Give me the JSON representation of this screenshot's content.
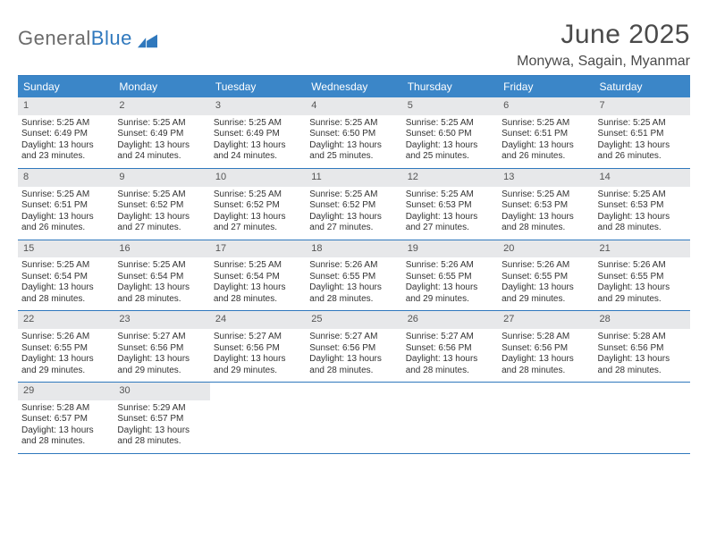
{
  "brand": {
    "name_part1": "General",
    "name_part2": "Blue"
  },
  "title": "June 2025",
  "location": "Monywa, Sagain, Myanmar",
  "colors": {
    "header_bg": "#3b86c8",
    "header_text": "#ffffff",
    "rule": "#2f78bd",
    "daynum_bg": "#e7e8ea",
    "body_text": "#333333",
    "brand_gray": "#6b6b6b",
    "brand_blue": "#2f78bd",
    "page_bg": "#ffffff"
  },
  "day_labels": [
    "Sunday",
    "Monday",
    "Tuesday",
    "Wednesday",
    "Thursday",
    "Friday",
    "Saturday"
  ],
  "weeks": [
    [
      {
        "n": "1",
        "sunrise": "Sunrise: 5:25 AM",
        "sunset": "Sunset: 6:49 PM",
        "daylight": "Daylight: 13 hours and 23 minutes."
      },
      {
        "n": "2",
        "sunrise": "Sunrise: 5:25 AM",
        "sunset": "Sunset: 6:49 PM",
        "daylight": "Daylight: 13 hours and 24 minutes."
      },
      {
        "n": "3",
        "sunrise": "Sunrise: 5:25 AM",
        "sunset": "Sunset: 6:49 PM",
        "daylight": "Daylight: 13 hours and 24 minutes."
      },
      {
        "n": "4",
        "sunrise": "Sunrise: 5:25 AM",
        "sunset": "Sunset: 6:50 PM",
        "daylight": "Daylight: 13 hours and 25 minutes."
      },
      {
        "n": "5",
        "sunrise": "Sunrise: 5:25 AM",
        "sunset": "Sunset: 6:50 PM",
        "daylight": "Daylight: 13 hours and 25 minutes."
      },
      {
        "n": "6",
        "sunrise": "Sunrise: 5:25 AM",
        "sunset": "Sunset: 6:51 PM",
        "daylight": "Daylight: 13 hours and 26 minutes."
      },
      {
        "n": "7",
        "sunrise": "Sunrise: 5:25 AM",
        "sunset": "Sunset: 6:51 PM",
        "daylight": "Daylight: 13 hours and 26 minutes."
      }
    ],
    [
      {
        "n": "8",
        "sunrise": "Sunrise: 5:25 AM",
        "sunset": "Sunset: 6:51 PM",
        "daylight": "Daylight: 13 hours and 26 minutes."
      },
      {
        "n": "9",
        "sunrise": "Sunrise: 5:25 AM",
        "sunset": "Sunset: 6:52 PM",
        "daylight": "Daylight: 13 hours and 27 minutes."
      },
      {
        "n": "10",
        "sunrise": "Sunrise: 5:25 AM",
        "sunset": "Sunset: 6:52 PM",
        "daylight": "Daylight: 13 hours and 27 minutes."
      },
      {
        "n": "11",
        "sunrise": "Sunrise: 5:25 AM",
        "sunset": "Sunset: 6:52 PM",
        "daylight": "Daylight: 13 hours and 27 minutes."
      },
      {
        "n": "12",
        "sunrise": "Sunrise: 5:25 AM",
        "sunset": "Sunset: 6:53 PM",
        "daylight": "Daylight: 13 hours and 27 minutes."
      },
      {
        "n": "13",
        "sunrise": "Sunrise: 5:25 AM",
        "sunset": "Sunset: 6:53 PM",
        "daylight": "Daylight: 13 hours and 28 minutes."
      },
      {
        "n": "14",
        "sunrise": "Sunrise: 5:25 AM",
        "sunset": "Sunset: 6:53 PM",
        "daylight": "Daylight: 13 hours and 28 minutes."
      }
    ],
    [
      {
        "n": "15",
        "sunrise": "Sunrise: 5:25 AM",
        "sunset": "Sunset: 6:54 PM",
        "daylight": "Daylight: 13 hours and 28 minutes."
      },
      {
        "n": "16",
        "sunrise": "Sunrise: 5:25 AM",
        "sunset": "Sunset: 6:54 PM",
        "daylight": "Daylight: 13 hours and 28 minutes."
      },
      {
        "n": "17",
        "sunrise": "Sunrise: 5:25 AM",
        "sunset": "Sunset: 6:54 PM",
        "daylight": "Daylight: 13 hours and 28 minutes."
      },
      {
        "n": "18",
        "sunrise": "Sunrise: 5:26 AM",
        "sunset": "Sunset: 6:55 PM",
        "daylight": "Daylight: 13 hours and 28 minutes."
      },
      {
        "n": "19",
        "sunrise": "Sunrise: 5:26 AM",
        "sunset": "Sunset: 6:55 PM",
        "daylight": "Daylight: 13 hours and 29 minutes."
      },
      {
        "n": "20",
        "sunrise": "Sunrise: 5:26 AM",
        "sunset": "Sunset: 6:55 PM",
        "daylight": "Daylight: 13 hours and 29 minutes."
      },
      {
        "n": "21",
        "sunrise": "Sunrise: 5:26 AM",
        "sunset": "Sunset: 6:55 PM",
        "daylight": "Daylight: 13 hours and 29 minutes."
      }
    ],
    [
      {
        "n": "22",
        "sunrise": "Sunrise: 5:26 AM",
        "sunset": "Sunset: 6:55 PM",
        "daylight": "Daylight: 13 hours and 29 minutes."
      },
      {
        "n": "23",
        "sunrise": "Sunrise: 5:27 AM",
        "sunset": "Sunset: 6:56 PM",
        "daylight": "Daylight: 13 hours and 29 minutes."
      },
      {
        "n": "24",
        "sunrise": "Sunrise: 5:27 AM",
        "sunset": "Sunset: 6:56 PM",
        "daylight": "Daylight: 13 hours and 29 minutes."
      },
      {
        "n": "25",
        "sunrise": "Sunrise: 5:27 AM",
        "sunset": "Sunset: 6:56 PM",
        "daylight": "Daylight: 13 hours and 28 minutes."
      },
      {
        "n": "26",
        "sunrise": "Sunrise: 5:27 AM",
        "sunset": "Sunset: 6:56 PM",
        "daylight": "Daylight: 13 hours and 28 minutes."
      },
      {
        "n": "27",
        "sunrise": "Sunrise: 5:28 AM",
        "sunset": "Sunset: 6:56 PM",
        "daylight": "Daylight: 13 hours and 28 minutes."
      },
      {
        "n": "28",
        "sunrise": "Sunrise: 5:28 AM",
        "sunset": "Sunset: 6:56 PM",
        "daylight": "Daylight: 13 hours and 28 minutes."
      }
    ],
    [
      {
        "n": "29",
        "sunrise": "Sunrise: 5:28 AM",
        "sunset": "Sunset: 6:57 PM",
        "daylight": "Daylight: 13 hours and 28 minutes."
      },
      {
        "n": "30",
        "sunrise": "Sunrise: 5:29 AM",
        "sunset": "Sunset: 6:57 PM",
        "daylight": "Daylight: 13 hours and 28 minutes."
      },
      null,
      null,
      null,
      null,
      null
    ]
  ]
}
